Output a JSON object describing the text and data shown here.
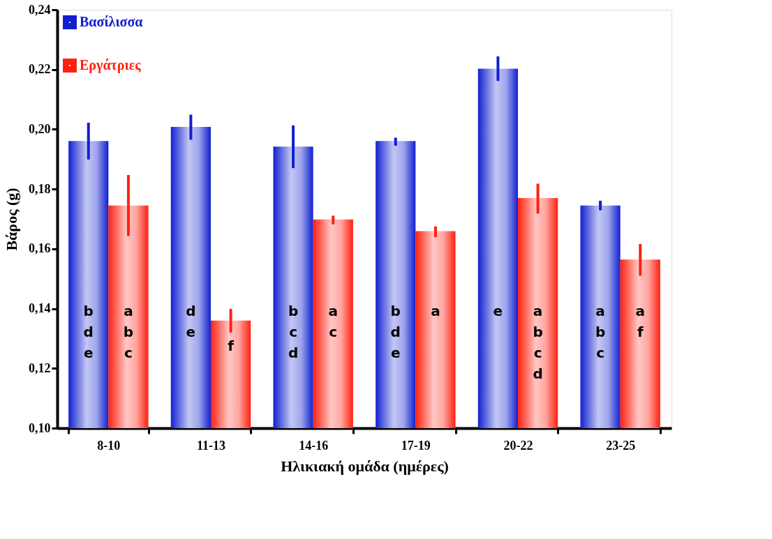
{
  "chart_data": {
    "type": "bar",
    "xlabel": "Ηλικιακή ομάδα (ημέρες)",
    "ylabel": "Βάρος (g)",
    "categories": [
      "8-10",
      "11-13",
      "14-16",
      "17-19",
      "20-22",
      "23-25"
    ],
    "series": [
      {
        "name": "Βασίλισσα",
        "color": "#1020d0",
        "values": [
          0.1961,
          0.2008,
          0.1942,
          0.1961,
          0.2203,
          0.1745
        ],
        "errors": [
          [
            0.1899,
            0.2022
          ],
          [
            0.1965,
            0.2049
          ],
          [
            0.187,
            0.2013
          ],
          [
            0.1945,
            0.1972
          ],
          [
            0.2162,
            0.2244
          ],
          [
            0.1729,
            0.1761
          ]
        ],
        "value_labels": [
          "b\nd\ne",
          "d\ne",
          "b\nc\nd",
          "b\nd\ne",
          "e",
          "a\nb\nc"
        ]
      },
      {
        "name": "Εργάτριες",
        "color": "#ff2010",
        "values": [
          0.1745,
          0.136,
          0.1698,
          0.1659,
          0.177,
          0.1564
        ],
        "errors": [
          [
            0.1643,
            0.1847
          ],
          [
            0.132,
            0.1399
          ],
          [
            0.1682,
            0.1711
          ],
          [
            0.1639,
            0.1675
          ],
          [
            0.1718,
            0.1818
          ],
          [
            0.151,
            0.1616
          ]
        ],
        "value_labels": [
          "a\nb\nc",
          "f",
          "a\nc",
          "a",
          "a\nb\nc\nd",
          "a\nf"
        ]
      }
    ],
    "ylim": [
      0.1,
      0.24
    ],
    "yticks": [
      {
        "value": 0.1,
        "label": "0,10"
      },
      {
        "value": 0.12,
        "label": "0,12"
      },
      {
        "value": 0.14,
        "label": "0,14"
      },
      {
        "value": 0.16,
        "label": "0,16"
      },
      {
        "value": 0.18,
        "label": "0,18"
      },
      {
        "value": 0.2,
        "label": "0,20"
      },
      {
        "value": 0.22,
        "label": "0,22"
      },
      {
        "value": 0.24,
        "label": "0,24"
      }
    ],
    "grid": false,
    "legend": "top left"
  }
}
